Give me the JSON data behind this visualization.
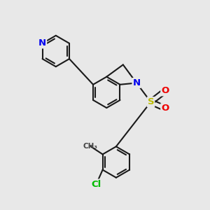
{
  "background_color": "#e8e8e8",
  "bond_color": "#1a1a1a",
  "bond_width": 1.5,
  "N_color": "#0000ee",
  "S_color": "#bbbb00",
  "O_color": "#ee0000",
  "Cl_color": "#00bb00",
  "fig_width": 3.0,
  "fig_height": 3.0,
  "dpi": 100,
  "xlim": [
    -0.5,
    5.5
  ],
  "ylim": [
    -1.0,
    5.5
  ]
}
